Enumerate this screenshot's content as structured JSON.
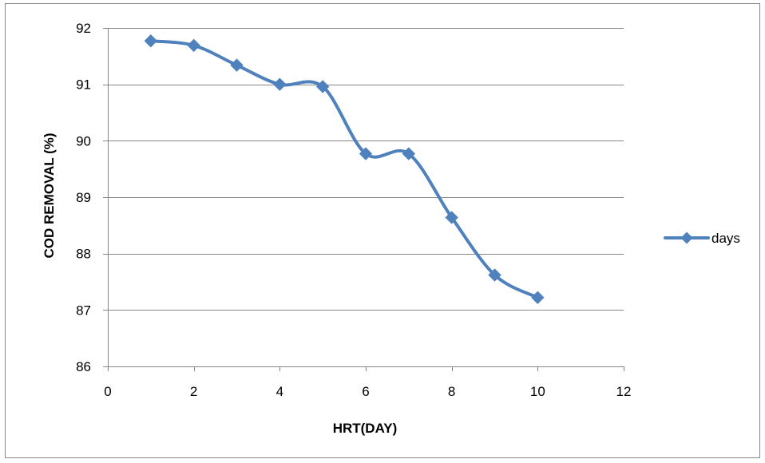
{
  "chart_data": {
    "type": "line",
    "title": "",
    "xlabel": "HRT(DAY)",
    "ylabel": "COD REMOVAL (%)",
    "xlim": [
      0,
      12
    ],
    "ylim": [
      86,
      92
    ],
    "x_ticks": [
      0,
      2,
      4,
      6,
      8,
      10,
      12
    ],
    "y_ticks": [
      86,
      87,
      88,
      89,
      90,
      91,
      92
    ],
    "grid": "horizontal",
    "smoothed": true,
    "legend_position": "right",
    "series": [
      {
        "name": "days",
        "color": "#4f81bd",
        "marker": "diamond",
        "x": [
          1,
          2,
          3,
          4,
          5,
          6,
          7,
          8,
          9,
          10
        ],
        "y": [
          91.77,
          91.69,
          91.34,
          91.0,
          90.96,
          89.77,
          89.77,
          88.64,
          87.62,
          87.22
        ]
      }
    ]
  },
  "colors": {
    "series": "#4f81bd",
    "grid": "#868686",
    "axis": "#868686",
    "frame": "#868686"
  }
}
